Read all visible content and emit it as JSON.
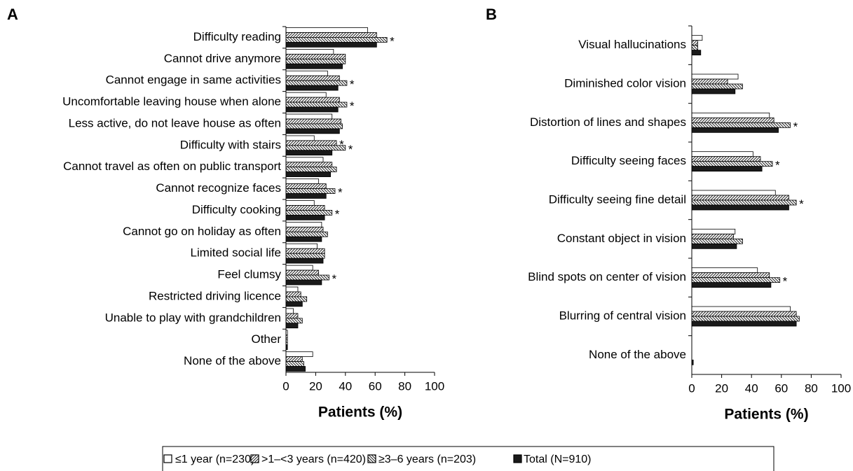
{
  "chart_data": [
    {
      "type": "bar",
      "orientation": "horizontal",
      "panel_label": "A",
      "x_label": "Patients (%)",
      "xlim": [
        0,
        100
      ],
      "xticks": [
        0,
        20,
        40,
        60,
        80,
        100
      ],
      "categories": [
        "Difficulty reading",
        "Cannot drive anymore",
        "Cannot engage in same activities",
        "Uncomfortable leaving house when alone",
        "Less active, do not leave house as often",
        "Difficulty with stairs",
        "Cannot travel as often on public transport",
        "Cannot recognize faces",
        "Difficulty cooking",
        "Cannot go on holiday as often",
        "Limited social life",
        "Feel clumsy",
        "Restricted driving licence",
        "Unable to play with grandchildren",
        "Other",
        "None of the above"
      ],
      "series": [
        {
          "name": "≤1 year (n=230)",
          "color": "#ffffff",
          "pattern": "none",
          "values": [
            55,
            32,
            28,
            27,
            31,
            19,
            25,
            22,
            19,
            24,
            21,
            18,
            8,
            5,
            1,
            18
          ]
        },
        {
          "name": ">1–<3 years (n=420)",
          "color": "#ffffff",
          "pattern": "hatch-up",
          "values": [
            61,
            40,
            36,
            36,
            37,
            34,
            31,
            27,
            26,
            25,
            26,
            22,
            10,
            8,
            1,
            11
          ]
        },
        {
          "name": "≥3–6 years (n=203)",
          "color": "#ffffff",
          "pattern": "hatch-down",
          "values": [
            68,
            40,
            41,
            41,
            38,
            40,
            34,
            33,
            31,
            28,
            26,
            29,
            14,
            11,
            1,
            12
          ]
        },
        {
          "name": "Total (N=910)",
          "color": "#1a1a1a",
          "pattern": "none",
          "values": [
            61,
            38,
            35,
            35,
            36,
            31,
            30,
            27,
            26,
            24,
            25,
            24,
            11,
            8,
            1,
            13
          ]
        }
      ],
      "annotations": [
        {
          "category": 0,
          "series": 2,
          "text": "*"
        },
        {
          "category": 2,
          "series": 2,
          "text": "*"
        },
        {
          "category": 3,
          "series": 2,
          "text": "*"
        },
        {
          "category": 5,
          "series": 1,
          "text": "*"
        },
        {
          "category": 5,
          "series": 2,
          "text": "*"
        },
        {
          "category": 7,
          "series": 2,
          "text": "*"
        },
        {
          "category": 8,
          "series": 2,
          "text": "*"
        },
        {
          "category": 11,
          "series": 2,
          "text": "*"
        }
      ]
    },
    {
      "type": "bar",
      "orientation": "horizontal",
      "panel_label": "B",
      "x_label": "Patients (%)",
      "xlim": [
        0,
        100
      ],
      "xticks": [
        0,
        20,
        40,
        60,
        80,
        100
      ],
      "categories": [
        "Visual hallucinations",
        "Diminished color vision",
        "Distortion of lines and shapes",
        "Difficulty seeing faces",
        "Difficulty seeing fine detail",
        "Constant object in vision",
        "Blind spots on center of vision",
        "Blurring of central vision",
        "None of the above"
      ],
      "series": [
        {
          "name": "≤1 year (n=230)",
          "color": "#ffffff",
          "pattern": "none",
          "values": [
            7,
            31,
            52,
            41,
            56,
            29,
            44,
            66,
            0
          ]
        },
        {
          "name": ">1–<3 years (n=420)",
          "color": "#ffffff",
          "pattern": "hatch-up",
          "values": [
            4,
            24,
            55,
            46,
            65,
            28,
            52,
            70,
            0
          ]
        },
        {
          "name": "≥3–6 years (n=203)",
          "color": "#ffffff",
          "pattern": "hatch-down",
          "values": [
            4,
            34,
            66,
            54,
            70,
            34,
            59,
            72,
            0
          ]
        },
        {
          "name": "Total (N=910)",
          "color": "#1a1a1a",
          "pattern": "none",
          "values": [
            6,
            29,
            58,
            47,
            65,
            30,
            53,
            70,
            1
          ]
        }
      ],
      "annotations": [
        {
          "category": 2,
          "series": 2,
          "text": "*"
        },
        {
          "category": 3,
          "series": 2,
          "text": "*"
        },
        {
          "category": 4,
          "series": 2,
          "text": "*"
        },
        {
          "category": 6,
          "series": 2,
          "text": "*"
        }
      ]
    }
  ]
}
